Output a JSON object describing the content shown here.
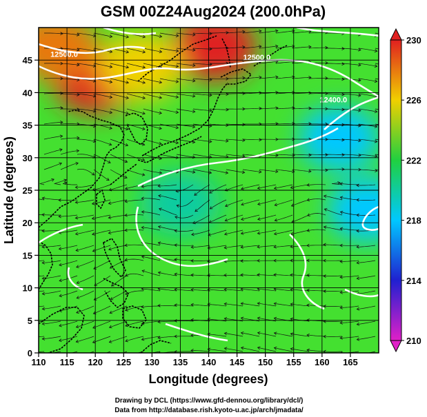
{
  "title": "GSM 00Z24Aug2024 (200.0hPa)",
  "axes": {
    "xlabel": "Longitude (degrees)",
    "ylabel": "Latitude  (degrees)",
    "xlim": [
      110,
      170
    ],
    "ylim": [
      0,
      50
    ],
    "xticks": [
      "110",
      "115",
      "120",
      "125",
      "130",
      "135",
      "140",
      "145",
      "150",
      "155",
      "160",
      "165"
    ],
    "yticks": [
      "0",
      "5",
      "10",
      "15",
      "20",
      "25",
      "30",
      "35",
      "40",
      "45"
    ],
    "grid": true
  },
  "colorbar": {
    "ticks": [
      "210",
      "214",
      "218",
      "222",
      "226",
      "230"
    ],
    "min": 210,
    "max": 230,
    "colors": [
      "#e020c8",
      "#2020d0",
      "#00c8ff",
      "#20d040",
      "#f0d000",
      "#e02020"
    ]
  },
  "contours": [
    {
      "text": "12500.0",
      "lon": 114.5,
      "lat": 45.5
    },
    {
      "text": "12500.0",
      "lon": 148.5,
      "lat": 45.0
    },
    {
      "text": "12400.0",
      "lon": 162.0,
      "lat": 38.5
    }
  ],
  "credits": {
    "line1": "Drawing by DCL (https://www.gfd-dennou.org/library/dcl/)",
    "line2": "Data from http://database.rish.kyoto-u.ac.jp/arch/jmadata/"
  },
  "chart_data": {
    "type": "heatmap",
    "title": "GSM 00Z24Aug2024 (200.0hPa)",
    "xlabel": "Longitude (degrees)",
    "ylabel": "Latitude  (degrees)",
    "xlim": [
      110,
      170
    ],
    "ylim": [
      0,
      50
    ],
    "color_range": [
      210,
      230
    ],
    "temperature_blobs": [
      {
        "lon": 120,
        "lat": 42,
        "value": 230
      },
      {
        "lon": 141,
        "lat": 47,
        "value": 230
      },
      {
        "lon": 128,
        "lat": 44,
        "value": 226
      },
      {
        "lon": 163,
        "lat": 33,
        "value": 218
      },
      {
        "lon": 168,
        "lat": 22,
        "value": 218
      },
      {
        "lon": 135,
        "lat": 23,
        "value": 220
      },
      {
        "lon": 113,
        "lat": 47,
        "value": 228
      }
    ]
  }
}
